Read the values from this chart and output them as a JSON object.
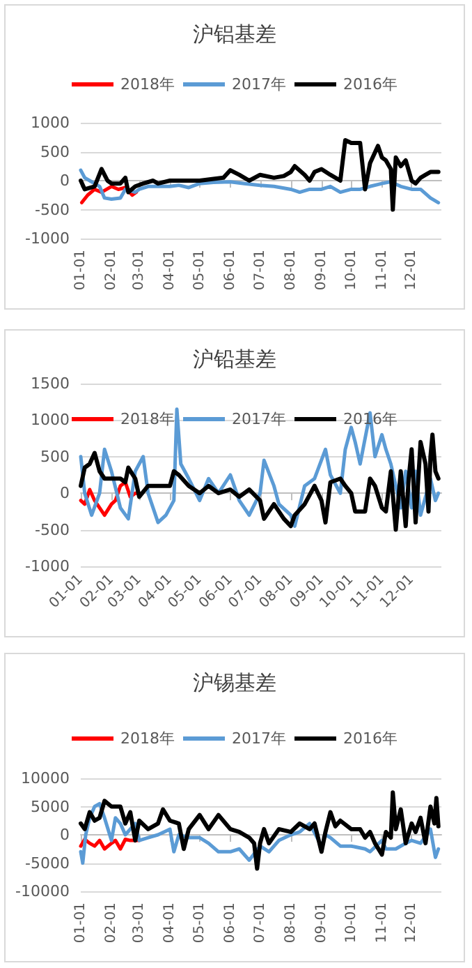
{
  "chart_data": [
    {
      "type": "line",
      "title": "沪铝基差",
      "legend": "top",
      "grid": "y",
      "marker": "none",
      "line_style": "solid",
      "xlim": [
        "--01-01",
        "--12-31"
      ],
      "xticks": [
        {
          "value": "--01-01",
          "label": "01-01"
        },
        {
          "value": "--02-01",
          "label": "02-01"
        },
        {
          "value": "--03-01",
          "label": "03-01"
        },
        {
          "value": "--04-01",
          "label": "04-01"
        },
        {
          "value": "--05-01",
          "label": "05-01"
        },
        {
          "value": "--06-01",
          "label": "06-01"
        },
        {
          "value": "--07-01",
          "label": "07-01"
        },
        {
          "value": "--08-01",
          "label": "08-01"
        },
        {
          "value": "--09-01",
          "label": "09-01"
        },
        {
          "value": "--10-01",
          "label": "10-01"
        },
        {
          "value": "--11-01",
          "label": "11-01"
        },
        {
          "value": "--12-01",
          "label": "12-01"
        }
      ],
      "ylim": [
        -1000,
        1000
      ],
      "yticks": [
        -1000,
        -500,
        0,
        500,
        1000
      ],
      "series": [
        {
          "name": "2018年",
          "color": "#ff0000",
          "x": [
            "--01-02",
            "--01-08",
            "--01-15",
            "--01-22",
            "--02-01",
            "--02-08",
            "--02-15",
            "--02-22",
            "--02-26"
          ],
          "values": [
            -380,
            -250,
            -150,
            -200,
            -100,
            -150,
            -120,
            -250,
            -200
          ]
        },
        {
          "name": "2017年",
          "color": "#5b9bd5",
          "x": [
            "--01-01",
            "--01-05",
            "--01-10",
            "--01-20",
            "--01-25",
            "--02-01",
            "--02-10",
            "--02-15",
            "--02-25",
            "--03-01",
            "--03-10",
            "--03-20",
            "--04-01",
            "--04-10",
            "--04-20",
            "--05-01",
            "--05-15",
            "--06-01",
            "--06-15",
            "--07-01",
            "--07-15",
            "--08-01",
            "--08-10",
            "--08-20",
            "--09-01",
            "--09-10",
            "--09-20",
            "--10-01",
            "--10-10",
            "--10-20",
            "--11-01",
            "--11-10",
            "--11-20",
            "--12-01",
            "--12-10",
            "--12-20",
            "--12-28"
          ],
          "values": [
            180,
            50,
            0,
            -100,
            -300,
            -320,
            -300,
            -150,
            -200,
            -150,
            -100,
            -100,
            -100,
            -80,
            -120,
            -50,
            -30,
            -20,
            -50,
            -80,
            -100,
            -150,
            -200,
            -150,
            -150,
            -100,
            -200,
            -150,
            -150,
            -100,
            -50,
            -20,
            -100,
            -150,
            -150,
            -300,
            -380
          ]
        },
        {
          "name": "2016年",
          "color": "#000000",
          "x": [
            "--01-01",
            "--01-05",
            "--01-15",
            "--01-22",
            "--01-28",
            "--02-01",
            "--02-10",
            "--02-15",
            "--02-18",
            "--02-25",
            "--03-05",
            "--03-15",
            "--03-20",
            "--04-01",
            "--04-15",
            "--05-01",
            "--05-15",
            "--05-25",
            "--06-01",
            "--06-10",
            "--06-20",
            "--07-01",
            "--07-15",
            "--07-25",
            "--08-01",
            "--08-05",
            "--08-15",
            "--08-20",
            "--08-25",
            "--09-01",
            "--09-10",
            "--09-20",
            "--09-25",
            "--10-01",
            "--10-10",
            "--10-15",
            "--10-20",
            "--10-28",
            "--11-01",
            "--11-05",
            "--11-10",
            "--11-12",
            "--11-15",
            "--11-20",
            "--11-25",
            "--12-01",
            "--12-05",
            "--12-10",
            "--12-15",
            "--12-20",
            "--12-28"
          ],
          "values": [
            0,
            -150,
            -100,
            200,
            0,
            -50,
            -50,
            50,
            -200,
            -100,
            -50,
            0,
            -50,
            0,
            0,
            0,
            30,
            50,
            180,
            100,
            0,
            100,
            50,
            80,
            150,
            250,
            100,
            0,
            150,
            200,
            100,
            0,
            700,
            650,
            650,
            -150,
            300,
            600,
            400,
            350,
            200,
            -500,
            400,
            250,
            350,
            0,
            -50,
            50,
            100,
            150,
            150
          ]
        }
      ]
    },
    {
      "type": "line",
      "title": "沪铅基差",
      "legend": "top",
      "grid": "y",
      "marker": "none",
      "line_style": "solid",
      "xlim": [
        "--01-01",
        "--12-31"
      ],
      "xticks": [
        {
          "value": "--01-01",
          "label": "01-01"
        },
        {
          "value": "--02-01",
          "label": "02-01"
        },
        {
          "value": "--03-01",
          "label": "03-01"
        },
        {
          "value": "--04-01",
          "label": "04-01"
        },
        {
          "value": "--05-01",
          "label": "05-01"
        },
        {
          "value": "--06-01",
          "label": "06-01"
        },
        {
          "value": "--07-01",
          "label": "07-01"
        },
        {
          "value": "--08-01",
          "label": "08-01"
        },
        {
          "value": "--09-01",
          "label": "09-01"
        },
        {
          "value": "--10-01",
          "label": "10-01"
        },
        {
          "value": "--11-01",
          "label": "11-01"
        },
        {
          "value": "--12-01",
          "label": "12-01"
        }
      ],
      "ylim": [
        -1000,
        1500
      ],
      "yticks": [
        -1000,
        -500,
        0,
        500,
        1000,
        1500
      ],
      "series": [
        {
          "name": "2018年",
          "color": "#ff0000",
          "x": [
            "--01-01",
            "--01-05",
            "--01-10",
            "--01-15",
            "--01-20",
            "--01-25",
            "--02-01",
            "--02-05",
            "--02-10",
            "--02-15",
            "--02-20",
            "--02-25",
            "--03-01"
          ],
          "values": [
            -100,
            -150,
            50,
            -100,
            -200,
            -300,
            -150,
            -100,
            100,
            150,
            -50,
            0,
            0
          ]
        },
        {
          "name": "2017年",
          "color": "#5b9bd5",
          "x": [
            "--01-01",
            "--01-05",
            "--01-12",
            "--01-20",
            "--01-25",
            "--02-01",
            "--02-10",
            "--02-18",
            "--02-25",
            "--03-05",
            "--03-10",
            "--03-20",
            "--03-28",
            "--04-05",
            "--04-08",
            "--04-12",
            "--04-20",
            "--05-01",
            "--05-10",
            "--05-20",
            "--06-01",
            "--06-10",
            "--06-20",
            "--07-01",
            "--07-05",
            "--07-15",
            "--07-20",
            "--08-01",
            "--08-05",
            "--08-15",
            "--08-25",
            "--09-05",
            "--09-10",
            "--09-20",
            "--09-25",
            "--10-01",
            "--10-05",
            "--10-10",
            "--10-20",
            "--10-25",
            "--11-01",
            "--11-05",
            "--11-10",
            "--11-20",
            "--11-25",
            "--12-01",
            "--12-05",
            "--12-10",
            "--12-20",
            "--12-25",
            "--12-28"
          ],
          "values": [
            500,
            0,
            -300,
            0,
            600,
            300,
            -200,
            -350,
            300,
            500,
            0,
            -400,
            -300,
            -100,
            1150,
            400,
            200,
            -100,
            200,
            0,
            250,
            -100,
            -300,
            0,
            450,
            100,
            -150,
            -300,
            -450,
            100,
            200,
            600,
            250,
            0,
            600,
            900,
            700,
            400,
            1100,
            500,
            800,
            600,
            400,
            -200,
            300,
            -200,
            300,
            -300,
            200,
            -100,
            0
          ]
        },
        {
          "name": "2016年",
          "color": "#000000",
          "x": [
            "--01-01",
            "--01-05",
            "--01-10",
            "--01-15",
            "--01-20",
            "--01-25",
            "--02-01",
            "--02-10",
            "--02-15",
            "--02-18",
            "--02-25",
            "--03-01",
            "--03-10",
            "--03-20",
            "--04-01",
            "--04-05",
            "--04-10",
            "--04-20",
            "--05-01",
            "--05-10",
            "--05-20",
            "--06-01",
            "--06-10",
            "--06-20",
            "--07-01",
            "--07-05",
            "--07-15",
            "--07-25",
            "--08-01",
            "--08-05",
            "--08-15",
            "--08-25",
            "--09-01",
            "--09-05",
            "--09-10",
            "--09-20",
            "--09-25",
            "--10-01",
            "--10-05",
            "--10-15",
            "--10-20",
            "--10-25",
            "--11-01",
            "--11-05",
            "--11-10",
            "--11-15",
            "--11-20",
            "--11-25",
            "--11-28",
            "--12-01",
            "--12-05",
            "--12-10",
            "--12-15",
            "--12-18",
            "--12-20",
            "--12-22",
            "--12-25",
            "--12-28"
          ],
          "values": [
            100,
            350,
            400,
            550,
            300,
            200,
            200,
            200,
            150,
            350,
            200,
            -50,
            100,
            100,
            100,
            300,
            250,
            100,
            0,
            100,
            0,
            50,
            -50,
            50,
            -100,
            -350,
            -150,
            -350,
            -450,
            -300,
            -150,
            100,
            -100,
            -400,
            150,
            200,
            100,
            0,
            -250,
            -250,
            200,
            100,
            -200,
            -250,
            300,
            -500,
            300,
            -450,
            200,
            600,
            -400,
            700,
            400,
            -250,
            500,
            800,
            300,
            200
          ]
        }
      ]
    },
    {
      "type": "line",
      "title": "沪锡基差",
      "legend": "top",
      "grid": "y",
      "marker": "none",
      "line_style": "solid",
      "xlim": [
        "--01-01",
        "--12-31"
      ],
      "xticks": [
        {
          "value": "--01-01",
          "label": "01-01"
        },
        {
          "value": "--02-01",
          "label": "02-01"
        },
        {
          "value": "--03-01",
          "label": "03-01"
        },
        {
          "value": "--04-01",
          "label": "04-01"
        },
        {
          "value": "--05-01",
          "label": "05-01"
        },
        {
          "value": "--06-01",
          "label": "06-01"
        },
        {
          "value": "--07-01",
          "label": "07-01"
        },
        {
          "value": "--08-01",
          "label": "08-01"
        },
        {
          "value": "--09-01",
          "label": "09-01"
        },
        {
          "value": "--10-01",
          "label": "10-01"
        },
        {
          "value": "--11-01",
          "label": "11-01"
        },
        {
          "value": "--12-01",
          "label": "12-01"
        }
      ],
      "ylim": [
        -10000,
        10000
      ],
      "yticks": [
        -10000,
        -5000,
        0,
        5000,
        10000
      ],
      "series": [
        {
          "name": "2018年",
          "color": "#ff0000",
          "x": [
            "--01-01",
            "--01-05",
            "--01-10",
            "--01-15",
            "--01-20",
            "--01-25",
            "--02-01",
            "--02-05",
            "--02-10",
            "--02-15",
            "--02-20",
            "--03-01"
          ],
          "values": [
            -2000,
            -800,
            -1500,
            -2000,
            -1000,
            -2500,
            -1500,
            -1000,
            -2500,
            -800,
            -1000,
            -1000
          ]
        },
        {
          "name": "2017年",
          "color": "#5b9bd5",
          "x": [
            "--01-01",
            "--01-03",
            "--01-06",
            "--01-10",
            "--01-15",
            "--01-20",
            "--01-25",
            "--02-01",
            "--02-05",
            "--02-10",
            "--02-15",
            "--02-25",
            "--03-01",
            "--03-10",
            "--03-20",
            "--04-01",
            "--04-05",
            "--04-10",
            "--04-20",
            "--05-01",
            "--05-10",
            "--05-20",
            "--06-01",
            "--06-10",
            "--06-20",
            "--07-01",
            "--07-10",
            "--07-20",
            "--08-01",
            "--08-10",
            "--08-20",
            "--09-01",
            "--09-05",
            "--09-10",
            "--09-20",
            "--10-01",
            "--10-15",
            "--10-20",
            "--11-01",
            "--11-05",
            "--11-15",
            "--11-25",
            "--12-01",
            "--12-10",
            "--12-20",
            "--12-25",
            "--12-28"
          ],
          "values": [
            -3000,
            -5000,
            0,
            3000,
            5000,
            5500,
            3000,
            -1000,
            3000,
            2000,
            0,
            2000,
            -1000,
            -500,
            0,
            1000,
            -3000,
            0,
            -500,
            -500,
            -1500,
            -3000,
            -3000,
            -2500,
            -4500,
            -2000,
            -3000,
            -1000,
            0,
            500,
            2000,
            -2000,
            0,
            -500,
            -2000,
            -2000,
            -2500,
            -3000,
            -1000,
            -2500,
            -2500,
            -1500,
            -1000,
            -1500,
            1000,
            -4000,
            -2500
          ]
        },
        {
          "name": "2016年",
          "color": "#000000",
          "x": [
            "--01-01",
            "--01-05",
            "--01-10",
            "--01-15",
            "--01-20",
            "--01-25",
            "--02-01",
            "--02-10",
            "--02-15",
            "--02-20",
            "--02-25",
            "--03-01",
            "--03-10",
            "--03-20",
            "--03-25",
            "--04-01",
            "--04-10",
            "--04-15",
            "--04-20",
            "--05-01",
            "--05-10",
            "--05-20",
            "--06-01",
            "--06-10",
            "--06-20",
            "--06-25",
            "--06-28",
            "--07-01",
            "--07-05",
            "--07-10",
            "--07-20",
            "--08-01",
            "--08-10",
            "--08-20",
            "--08-25",
            "--09-01",
            "--09-05",
            "--09-10",
            "--09-15",
            "--09-20",
            "--10-01",
            "--10-10",
            "--10-15",
            "--10-20",
            "--10-25",
            "--11-01",
            "--11-05",
            "--11-10",
            "--11-12",
            "--11-15",
            "--11-20",
            "--11-25",
            "--12-01",
            "--12-05",
            "--12-10",
            "--12-15",
            "--12-20",
            "--12-24",
            "--12-26",
            "--12-28"
          ],
          "values": [
            2000,
            1000,
            4000,
            2500,
            3000,
            6000,
            5000,
            5000,
            2000,
            4000,
            -1000,
            2500,
            1000,
            2000,
            4500,
            2500,
            2000,
            -2500,
            1000,
            3500,
            1000,
            3500,
            1000,
            500,
            -500,
            -1500,
            -6000,
            -1500,
            1000,
            -1500,
            1000,
            500,
            2000,
            1000,
            2000,
            -3000,
            500,
            4000,
            1500,
            2500,
            1000,
            1000,
            -500,
            500,
            -1500,
            -3500,
            500,
            -500,
            7500,
            1000,
            4500,
            -1500,
            2000,
            500,
            3000,
            -1500,
            5000,
            2000,
            6500,
            1500
          ]
        }
      ]
    }
  ]
}
